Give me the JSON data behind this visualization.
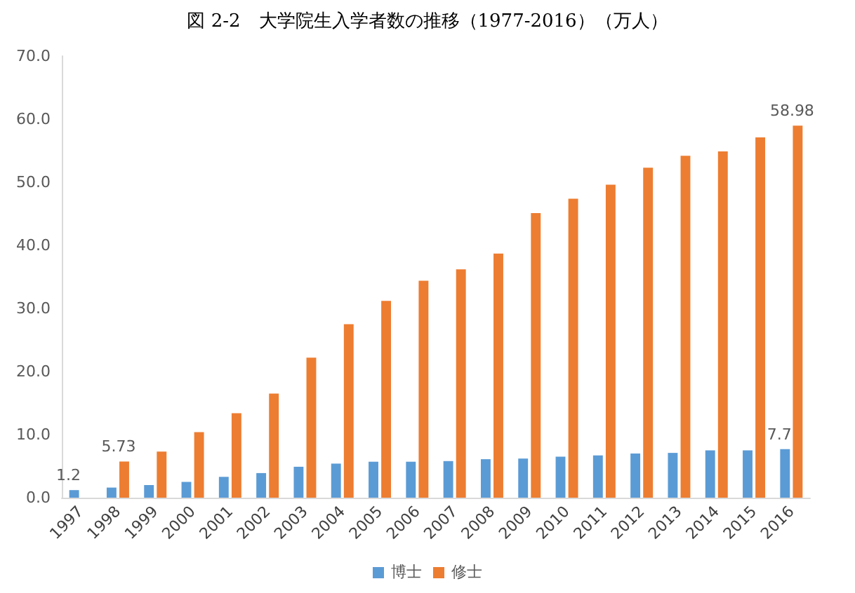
{
  "chart_data": {
    "type": "bar",
    "title": "図 2-2　大学院生入学者数の推移（1977-2016）（万人）",
    "categories": [
      "1997",
      "1998",
      "1999",
      "2000",
      "2001",
      "2002",
      "2003",
      "2004",
      "2005",
      "2006",
      "2007",
      "2008",
      "2009",
      "2010",
      "2011",
      "2012",
      "2013",
      "2014",
      "2015",
      "2016"
    ],
    "series": [
      {
        "name": "博士",
        "color": "#5b9bd5",
        "values": [
          1.2,
          1.6,
          2.0,
          2.5,
          3.3,
          3.9,
          4.9,
          5.4,
          5.7,
          5.7,
          5.8,
          6.1,
          6.2,
          6.5,
          6.7,
          7.0,
          7.1,
          7.5,
          7.5,
          7.7
        ],
        "value_labels": [
          "1.2",
          null,
          null,
          null,
          null,
          null,
          null,
          null,
          null,
          null,
          null,
          null,
          null,
          null,
          null,
          null,
          null,
          null,
          null,
          "7.7"
        ]
      },
      {
        "name": "修士",
        "color": "#ed7d31",
        "values": [
          null,
          5.73,
          7.3,
          10.4,
          13.4,
          16.5,
          22.2,
          27.5,
          31.2,
          34.4,
          36.2,
          38.7,
          45.1,
          47.4,
          49.6,
          52.3,
          54.2,
          54.9,
          57.1,
          58.98
        ],
        "value_labels": [
          null,
          "5.73",
          null,
          null,
          null,
          null,
          null,
          null,
          null,
          null,
          null,
          null,
          null,
          null,
          null,
          null,
          null,
          null,
          null,
          "58.98"
        ]
      }
    ],
    "ylim": [
      0,
      70
    ],
    "yticks": [
      {
        "value": 0,
        "label": "0.0"
      },
      {
        "value": 10,
        "label": "10.0"
      },
      {
        "value": 20,
        "label": "20.0"
      },
      {
        "value": 30,
        "label": "30.0"
      },
      {
        "value": 40,
        "label": "40.0"
      },
      {
        "value": 50,
        "label": "50.0"
      },
      {
        "value": 60,
        "label": "60.0"
      },
      {
        "value": 70,
        "label": "70.0"
      }
    ],
    "grid": false,
    "legend": "bottom"
  }
}
